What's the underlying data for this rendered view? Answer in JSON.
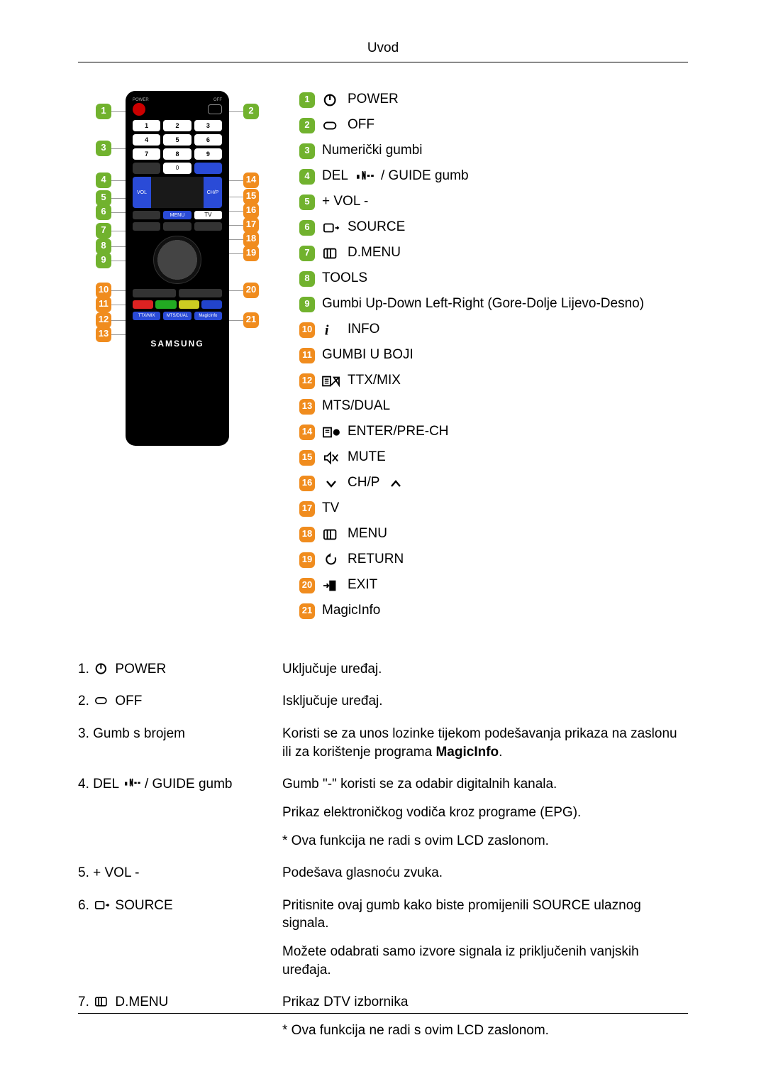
{
  "header": {
    "title": "Uvod"
  },
  "colors": {
    "badge_green": "#71b22e",
    "badge_orange": "#f08c1e",
    "remote_body": "#000000",
    "brand_text": "#ffffff"
  },
  "remote": {
    "brand": "SAMSUNG",
    "left_callouts": [
      1,
      3,
      4,
      5,
      6,
      7,
      8,
      9,
      10,
      11,
      12,
      13
    ],
    "right_callouts": [
      2,
      14,
      15,
      16,
      17,
      18,
      19,
      20,
      21
    ],
    "left_callout_tops": [
      18,
      70,
      115,
      140,
      160,
      186,
      208,
      228,
      270,
      290,
      312,
      332
    ],
    "right_callout_tops": [
      18,
      115,
      138,
      158,
      178,
      198,
      218,
      270,
      312
    ]
  },
  "legend": [
    {
      "n": 1,
      "color": "green",
      "icon": "power",
      "label": "POWER"
    },
    {
      "n": 2,
      "color": "green",
      "icon": "off",
      "label": "OFF"
    },
    {
      "n": 3,
      "color": "green",
      "icon": "",
      "label": "Numerički gumbi"
    },
    {
      "n": 4,
      "color": "green",
      "icon": "del",
      "label_pre": "DEL",
      "label": " / GUIDE gumb"
    },
    {
      "n": 5,
      "color": "green",
      "icon": "",
      "label": "+ VOL -"
    },
    {
      "n": 6,
      "color": "green",
      "icon": "source",
      "label": "SOURCE"
    },
    {
      "n": 7,
      "color": "green",
      "icon": "dmenu",
      "label": "D.MENU"
    },
    {
      "n": 8,
      "color": "green",
      "icon": "",
      "label": "TOOLS"
    },
    {
      "n": 9,
      "color": "green",
      "icon": "",
      "label": "Gumbi Up-Down Left-Right (Gore-Dolje Lijevo-Desno)"
    },
    {
      "n": 10,
      "color": "orange",
      "icon": "info",
      "label": "INFO"
    },
    {
      "n": 11,
      "color": "orange",
      "icon": "",
      "label": "GUMBI U BOJI"
    },
    {
      "n": 12,
      "color": "orange",
      "icon": "ttx",
      "label": "TTX/MIX"
    },
    {
      "n": 13,
      "color": "orange",
      "icon": "",
      "label": "MTS/DUAL"
    },
    {
      "n": 14,
      "color": "orange",
      "icon": "enter",
      "label": "ENTER/PRE-CH"
    },
    {
      "n": 15,
      "color": "orange",
      "icon": "mute",
      "label": "MUTE"
    },
    {
      "n": 16,
      "color": "orange",
      "icon": "chp",
      "label": "CH/P"
    },
    {
      "n": 17,
      "color": "orange",
      "icon": "",
      "label": "TV"
    },
    {
      "n": 18,
      "color": "orange",
      "icon": "dmenu",
      "label": "MENU"
    },
    {
      "n": 19,
      "color": "orange",
      "icon": "return",
      "label": "RETURN"
    },
    {
      "n": 20,
      "color": "orange",
      "icon": "exit",
      "label": "EXIT"
    },
    {
      "n": 21,
      "color": "orange",
      "icon": "",
      "label": "MagicInfo"
    }
  ],
  "descriptions": [
    {
      "n": "1.",
      "icon": "power",
      "label": "POWER",
      "paras": [
        "Uključuje uređaj."
      ]
    },
    {
      "n": "2.",
      "icon": "off",
      "label": "OFF",
      "paras": [
        "Isključuje uređaj."
      ]
    },
    {
      "n": "3.",
      "icon": "",
      "label": "Gumb s brojem",
      "paras": [
        "Koristi se za unos lozinke tijekom podešavanja prikaza na zaslonu ili za korištenje programa <strong class=\"mi\">MagicInfo</strong>."
      ]
    },
    {
      "n": "4.",
      "icon": "del",
      "label_pre": "DEL",
      "label": " / GUIDE gumb",
      "paras": [
        "Gumb \"-\" koristi se za odabir digitalnih kanala.",
        "Prikaz elektroničkog vodiča kroz programe (EPG).",
        "* Ova funkcija ne radi s ovim LCD zaslonom."
      ]
    },
    {
      "n": "5.",
      "icon": "",
      "label": "+ VOL -",
      "paras": [
        "Podešava glasnoću zvuka."
      ]
    },
    {
      "n": "6.",
      "icon": "source",
      "label": "SOURCE",
      "paras": [
        "Pritisnite ovaj gumb kako biste promijenili SOURCE ulaznog signala.",
        "Možete odabrati samo izvore signala iz priključenih vanjskih uređaja."
      ]
    },
    {
      "n": "7.",
      "icon": "dmenu",
      "label": "D.MENU",
      "paras": [
        "Prikaz DTV izbornika",
        "* Ova funkcija ne radi s ovim LCD zaslonom."
      ]
    }
  ]
}
